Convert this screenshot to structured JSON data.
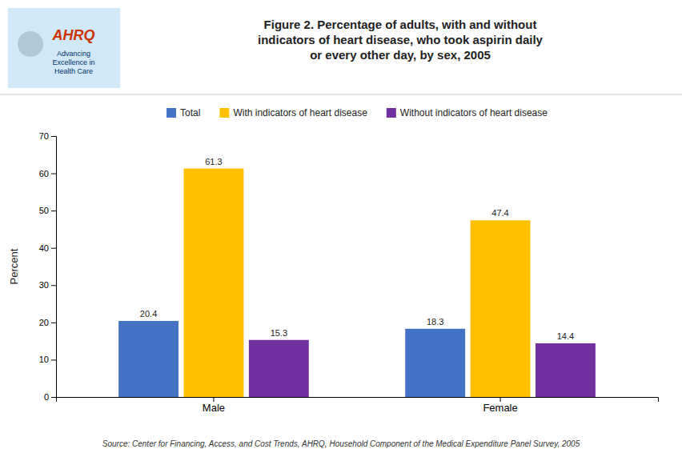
{
  "chart_data": {
    "type": "bar",
    "title": "Figure 2. Percentage of adults, with and without\nindicators of heart disease, who took aspirin daily\nor every other day, by sex, 2005",
    "categories": [
      "Male",
      "Female"
    ],
    "series": [
      {
        "name": "Total",
        "color": "#4472C4",
        "values": [
          20.4,
          18.3
        ]
      },
      {
        "name": "With indicators of heart disease",
        "color": "#FFC000",
        "values": [
          61.3,
          47.4
        ]
      },
      {
        "name": "Without indicators of heart disease",
        "color": "#7030A0",
        "values": [
          15.3,
          14.4
        ]
      }
    ],
    "ylabel": "Percent",
    "ylim": [
      0,
      70
    ],
    "yticks": [
      0,
      10,
      20,
      30,
      40,
      50,
      60,
      70
    ],
    "annotations": [
      "Source: Center for Financing, Access, and Cost Trends, AHRQ, Household Component of the Medical Expenditure Panel Survey, 2005",
      "AHRQ",
      "Advancing\nExcellence in\nHealth Care"
    ],
    "data_labels": true,
    "legend": "top",
    "grid": false
  }
}
